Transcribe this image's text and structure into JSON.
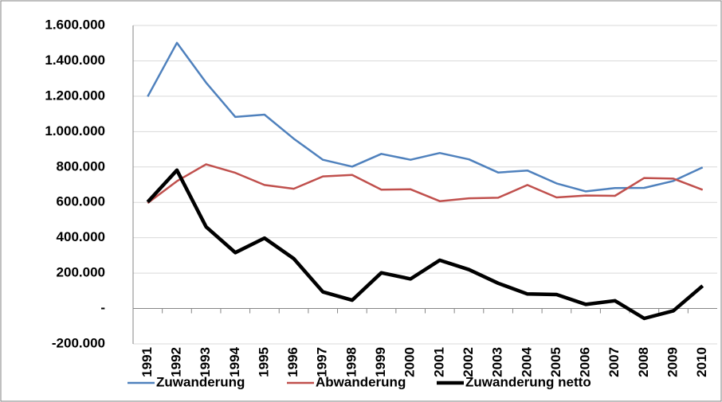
{
  "chart_data": {
    "type": "line",
    "categories": [
      "1991",
      "1992",
      "1993",
      "1994",
      "1995",
      "1996",
      "1997",
      "1998",
      "1999",
      "2000",
      "2001",
      "2002",
      "2003",
      "2004",
      "2005",
      "2006",
      "2007",
      "2008",
      "2009",
      "2010"
    ],
    "series": [
      {
        "name": "Zuwanderung",
        "color": "#4f81bd",
        "width": 2.5,
        "values": [
          1198000,
          1502000,
          1277000,
          1083000,
          1096000,
          960000,
          841000,
          802000,
          874000,
          841000,
          879000,
          843000,
          769000,
          780000,
          707000,
          662000,
          681000,
          682000,
          721000,
          798000
        ]
      },
      {
        "name": "Abwanderung",
        "color": "#c0504d",
        "width": 2.5,
        "values": [
          596000,
          720000,
          815000,
          767000,
          698000,
          677000,
          747000,
          755000,
          672000,
          674000,
          607000,
          623000,
          626000,
          698000,
          628000,
          639000,
          637000,
          738000,
          734000,
          671000
        ]
      },
      {
        "name": "Zuwanderung netto",
        "color": "#000000",
        "width": 4.5,
        "values": [
          602000,
          782000,
          462000,
          316000,
          398000,
          282000,
          94000,
          47000,
          202000,
          167000,
          273000,
          220000,
          143000,
          82000,
          79000,
          23000,
          44000,
          -56000,
          -13000,
          128000
        ]
      }
    ],
    "ylim": [
      -200000,
      1600000
    ],
    "yticks": [
      {
        "value": -200000,
        "label": "-200.000"
      },
      {
        "value": 0,
        "label": "-"
      },
      {
        "value": 200000,
        "label": "200.000"
      },
      {
        "value": 400000,
        "label": "400.000"
      },
      {
        "value": 600000,
        "label": "600.000"
      },
      {
        "value": 800000,
        "label": "800.000"
      },
      {
        "value": 1000000,
        "label": "1.000.000"
      },
      {
        "value": 1200000,
        "label": "1.200.000"
      },
      {
        "value": 1400000,
        "label": "1.400.000"
      },
      {
        "value": 1600000,
        "label": "1.600.000"
      }
    ],
    "grid": true,
    "legend": "bottom"
  }
}
